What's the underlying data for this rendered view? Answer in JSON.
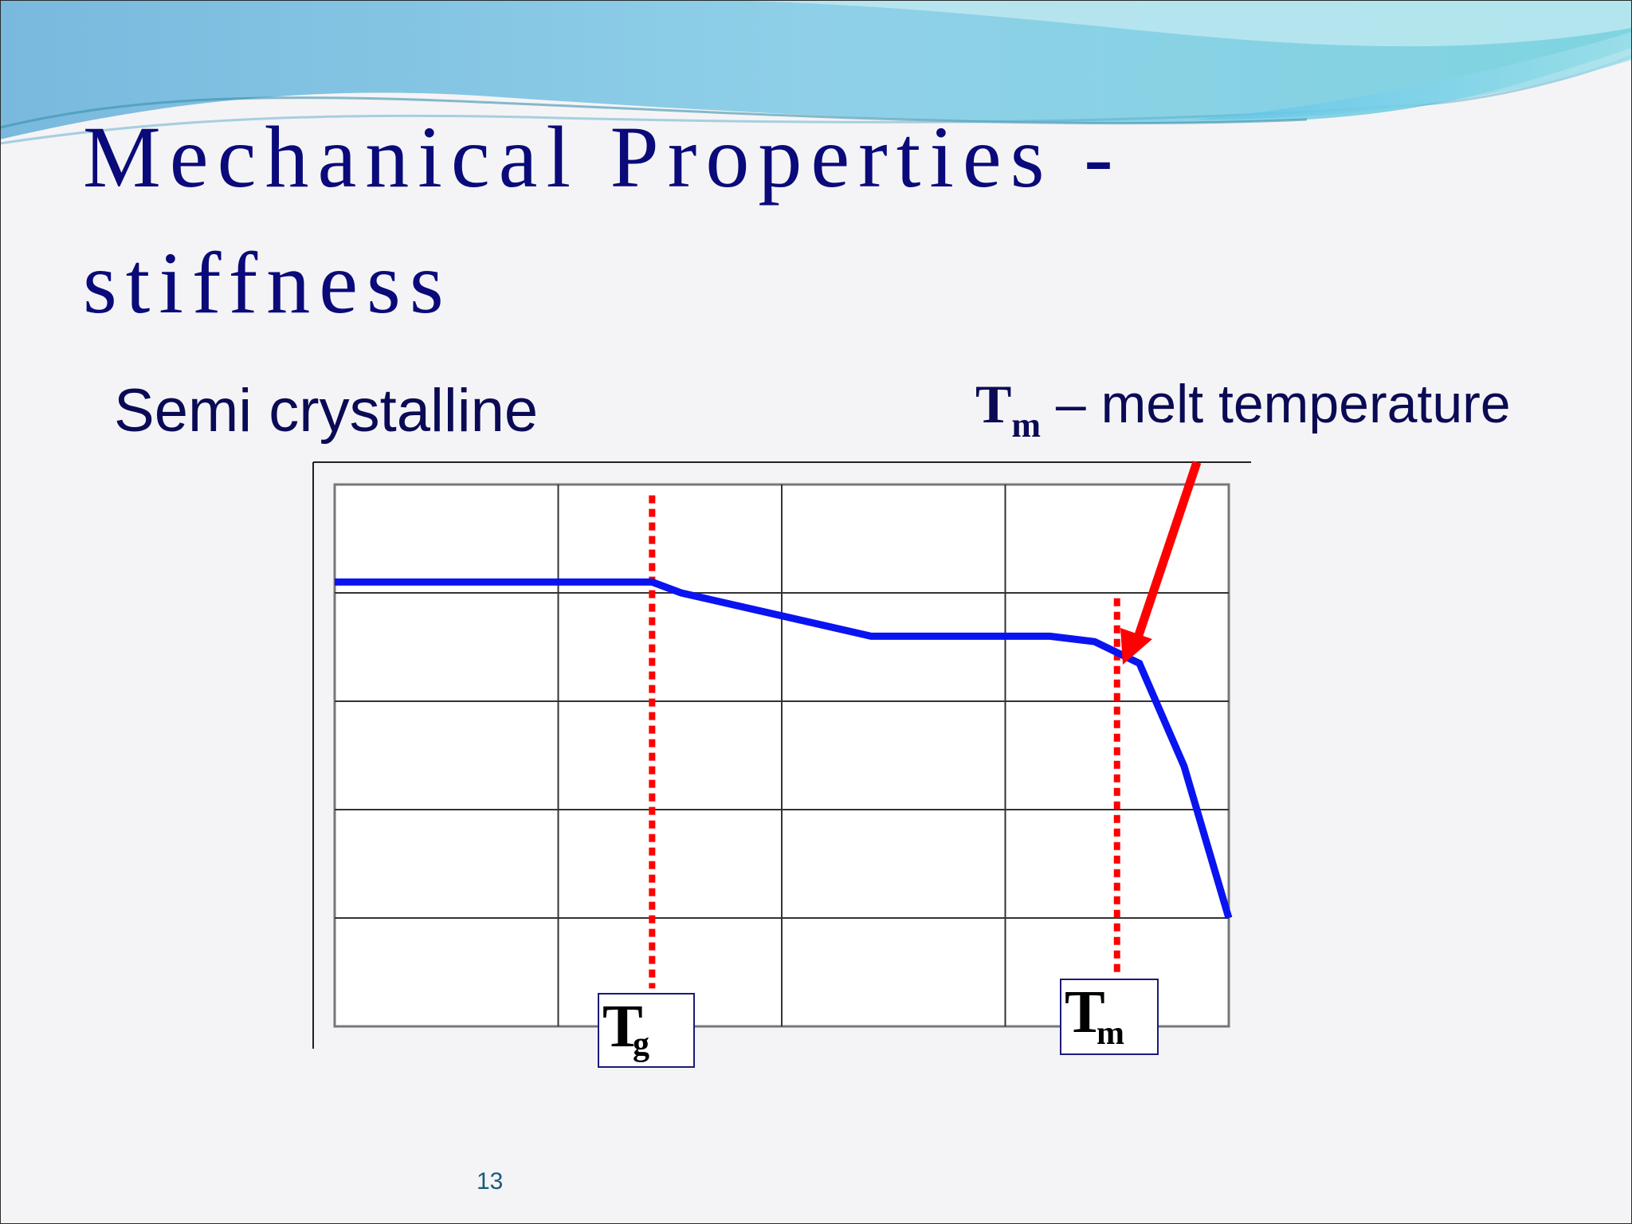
{
  "slide": {
    "title_line_1": "Mechanical Properties -",
    "title_line_2": "stiffness",
    "subtitle": "Semi crystalline",
    "annotation": {
      "symbol": "T",
      "subscript": "m",
      "text": " – melt temperature"
    },
    "page_number": "13",
    "colors": {
      "title": "#0a0a7a",
      "curve": "#0a14f0",
      "markers": "#ff0000",
      "grid": "#333333"
    }
  },
  "chart_data": {
    "type": "line",
    "xlim": [
      0,
      4
    ],
    "ylim": [
      0,
      5
    ],
    "grid": true,
    "x_gridlines": [
      1,
      2,
      3
    ],
    "y_gridlines": [
      1,
      2,
      3,
      4
    ],
    "series": [
      {
        "x": [
          0,
          1.42,
          1.55,
          2.4,
          3.2,
          3.4,
          3.6,
          3.8,
          4.0
        ],
        "y": [
          4.1,
          4.1,
          4.0,
          3.6,
          3.6,
          3.55,
          3.35,
          2.4,
          1.0
        ]
      }
    ],
    "markers": [
      {
        "symbol": "T",
        "subscript": "g",
        "x": 1.42,
        "y_range": [
          0.35,
          4.9
        ]
      },
      {
        "symbol": "T",
        "subscript": "m",
        "x": 3.5,
        "y_range": [
          0.45,
          3.95
        ]
      }
    ]
  }
}
